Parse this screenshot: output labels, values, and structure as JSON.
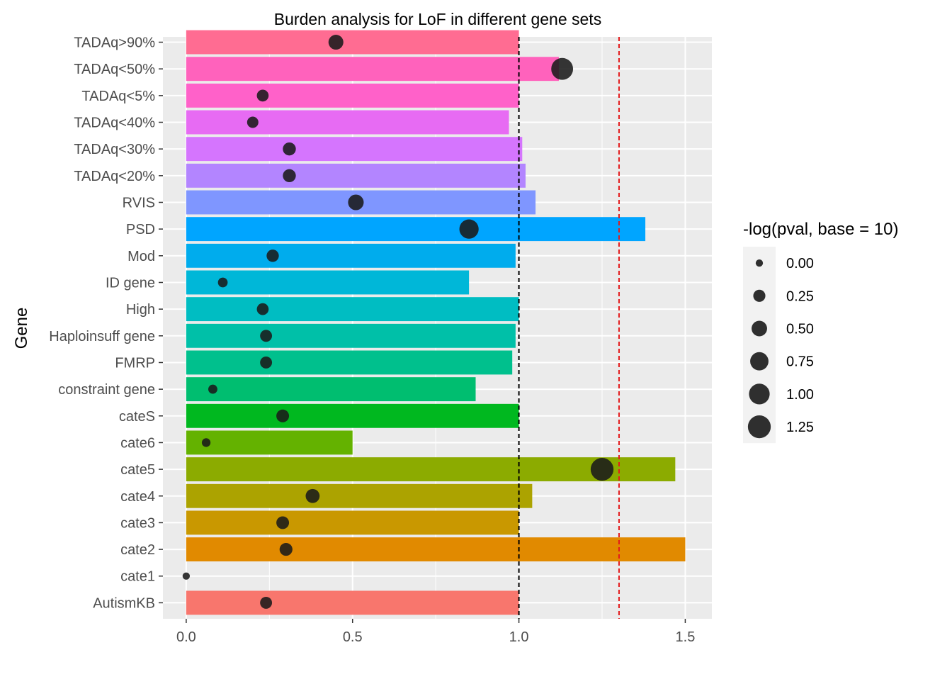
{
  "chart_data": {
    "type": "bar",
    "title": "Burden analysis for LoF in different gene sets",
    "xlabel": "",
    "ylabel": "Gene",
    "xlim": [
      -0.07,
      1.58
    ],
    "x_ticks": [
      "0.0",
      "0.5",
      "1.0",
      "1.5"
    ],
    "x_tick_values": [
      0,
      0.5,
      1.0,
      1.5
    ],
    "grid": true,
    "legend_position": "right",
    "categories": [
      "AutismKB",
      "cate1",
      "cate2",
      "cate3",
      "cate4",
      "cate5",
      "cate6",
      "cateS",
      "constraint gene",
      "FMRP",
      "Haploinsuff gene",
      "High",
      "ID gene",
      "Mod",
      "PSD",
      "RVIS",
      "TADAq<20%",
      "TADAq<30%",
      "TADAq<40%",
      "TADAq<5%",
      "TADAq<50%",
      "TADAq>90%"
    ],
    "bar_values": [
      1.0,
      0.0,
      1.5,
      1.0,
      1.04,
      1.47,
      0.5,
      1.0,
      0.87,
      0.98,
      0.99,
      1.0,
      0.85,
      0.99,
      1.38,
      1.05,
      1.02,
      1.01,
      0.97,
      1.0,
      1.12,
      1.0
    ],
    "bar_colors": [
      "#F8766D",
      "#F8766D",
      "#E18A00",
      "#C99800",
      "#ACA300",
      "#8CAB00",
      "#64B200",
      "#00B81F",
      "#00BE70",
      "#00C08D",
      "#00C0A8",
      "#00BDC2",
      "#00B7D8",
      "#00ACED",
      "#00A5FF",
      "#7F96FF",
      "#B385FF",
      "#D575FE",
      "#E76BF3",
      "#FF61C9",
      "#FF62BC",
      "#FF6C92"
    ],
    "point_x": [
      0.24,
      0.0,
      0.3,
      0.29,
      0.38,
      1.25,
      0.06,
      0.29,
      0.08,
      0.24,
      0.24,
      0.23,
      0.11,
      0.26,
      0.85,
      0.51,
      0.31,
      0.31,
      0.2,
      0.23,
      1.13,
      0.45
    ],
    "point_size_values": [
      0.24,
      0.0,
      0.3,
      0.29,
      0.38,
      1.25,
      0.06,
      0.29,
      0.08,
      0.24,
      0.24,
      0.23,
      0.11,
      0.26,
      0.85,
      0.51,
      0.31,
      0.31,
      0.2,
      0.23,
      1.13,
      0.45
    ],
    "reference_lines": [
      {
        "x": 1.0,
        "color": "#000000",
        "style": "dashed"
      },
      {
        "x": 1.301,
        "color": "#E31A1C",
        "style": "dashed"
      }
    ],
    "legend": {
      "title": "-log(pval, base = 10)",
      "labels": [
        "0.00",
        "0.25",
        "0.50",
        "0.75",
        "1.00",
        "1.25"
      ],
      "values": [
        0.0,
        0.25,
        0.5,
        0.75,
        1.0,
        1.25
      ]
    },
    "colors": {
      "panel_bg": "#EBEBEB",
      "grid": "#FFFFFF",
      "point": "#1A1A1A",
      "text": "#4D4D4D"
    }
  }
}
